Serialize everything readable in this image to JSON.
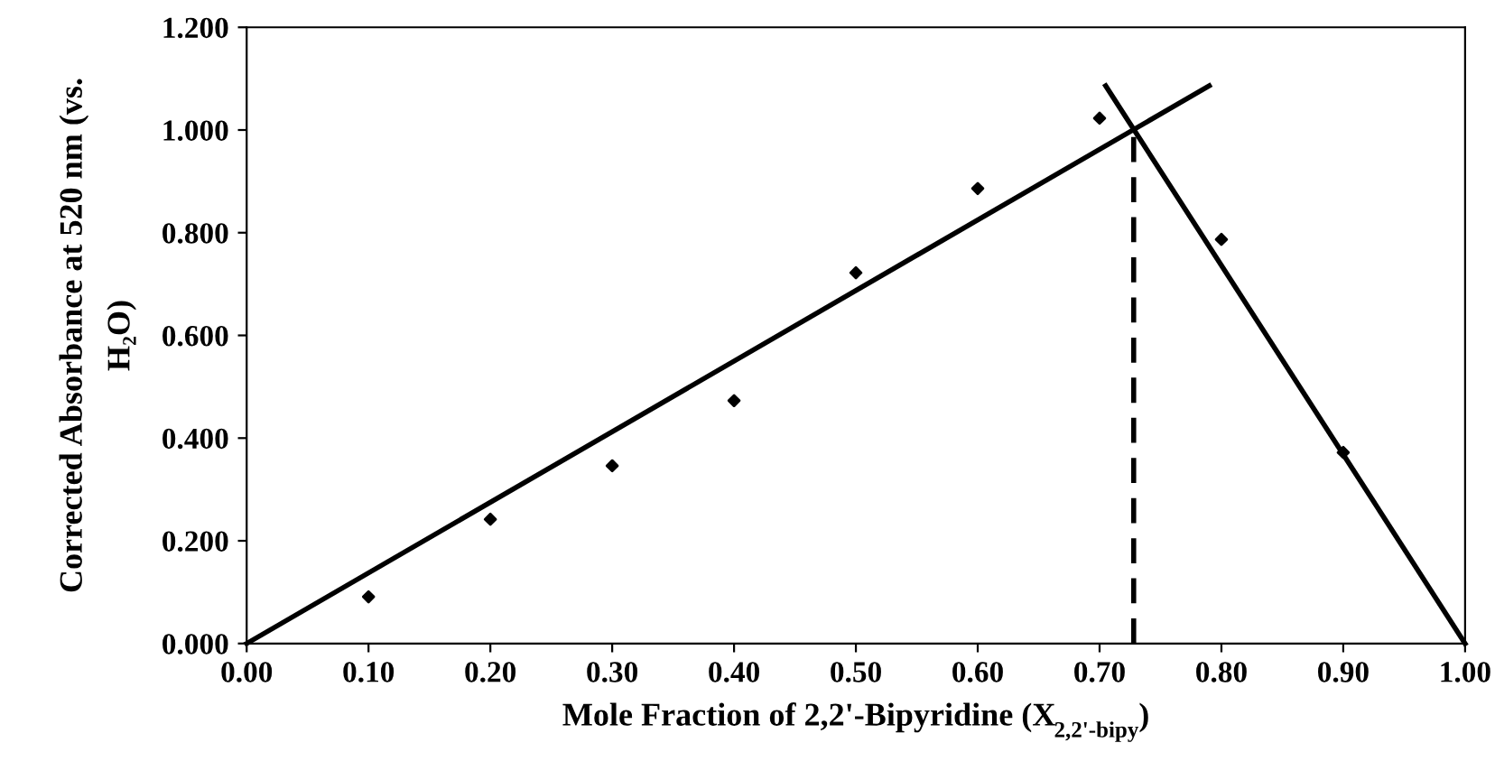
{
  "chart_data": {
    "type": "scatter",
    "xlabel": "Mole Fraction of 2,2'-Bipyridine (X$_{2,2'-bipy}$)",
    "ylabel": "Corrected Absorbance at 520 nm (vs.\nH₂O)",
    "x": [
      0.1,
      0.2,
      0.3,
      0.4,
      0.5,
      0.6,
      0.7,
      0.8,
      0.9
    ],
    "series": [
      {
        "color": "#000000",
        "marker": "diamond",
        "values": [
          0.091,
          0.242,
          0.346,
          0.473,
          0.722,
          0.886,
          1.023,
          0.787,
          0.372
        ]
      },
      {
        "type": "line",
        "color": "#000000",
        "marker": "none",
        "line_style": "solid",
        "x": [
          0,
          0.79
        ],
        "values": [
          0,
          1.086
        ]
      },
      {
        "type": "line",
        "color": "#000000",
        "marker": "none",
        "line_style": "solid",
        "x": [
          0.705,
          1.0
        ],
        "values": [
          1.086,
          0
        ]
      },
      {
        "type": "line",
        "color": "#000000",
        "marker": "none",
        "line_style": "dashed",
        "x": [
          0.728,
          0.728
        ],
        "values": [
          0,
          1.003
        ]
      }
    ],
    "xlim": [
      0,
      1
    ],
    "ylim": [
      0,
      1.2
    ],
    "xticks": [
      {
        "value": 0,
        "label": "0.00"
      },
      {
        "value": 0.1,
        "label": "0.10"
      },
      {
        "value": 0.2,
        "label": "0.20"
      },
      {
        "value": 0.3,
        "label": "0.30"
      },
      {
        "value": 0.4,
        "label": "0.40"
      },
      {
        "value": 0.5,
        "label": "0.50"
      },
      {
        "value": 0.6,
        "label": "0.60"
      },
      {
        "value": 0.7,
        "label": "0.70"
      },
      {
        "value": 0.8,
        "label": "0.80"
      },
      {
        "value": 0.9,
        "label": "0.90"
      },
      {
        "value": 1,
        "label": "1.00"
      }
    ],
    "yticks": [
      {
        "value": 0,
        "label": "0.000"
      },
      {
        "value": 0.2,
        "label": "0.200"
      },
      {
        "value": 0.4,
        "label": "0.400"
      },
      {
        "value": 0.6,
        "label": "0.600"
      },
      {
        "value": 0.8,
        "label": "0.800"
      },
      {
        "value": 1.0,
        "label": "1.000"
      },
      {
        "value": 1.2,
        "label": "1.200"
      }
    ],
    "grid": false,
    "legend": false
  }
}
